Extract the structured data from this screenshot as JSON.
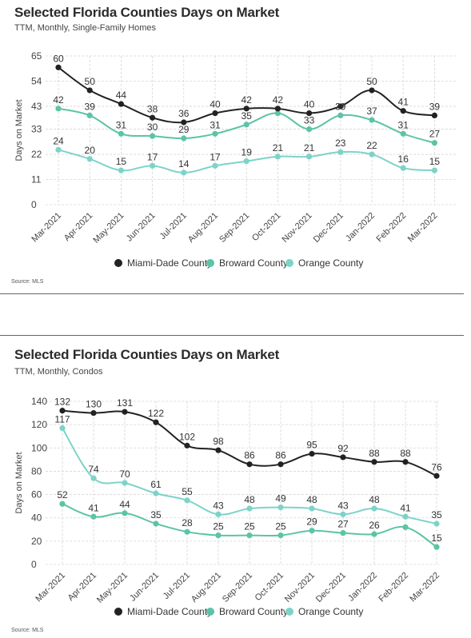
{
  "charts": [
    {
      "title": "Selected Florida Counties Days on Market",
      "subtitle": "TTM, Monthly, Single-Family Homes",
      "source": "Source: MLS"
    },
    {
      "title": "Selected Florida Counties Days on Market",
      "subtitle": "TTM, Monthly, Condos",
      "source": "Source: MLS"
    }
  ],
  "colors": {
    "miami": "#222222",
    "broward": "#5cc4a6",
    "orange": "#7dd3c8"
  },
  "chart_data": [
    {
      "type": "line",
      "title": "Selected Florida Counties Days on Market",
      "subtitle": "TTM, Monthly, Single-Family Homes",
      "ylabel": "Days on Market",
      "xlabel": "",
      "categories": [
        "Mar-2021",
        "Apr-2021",
        "May-2021",
        "Jun-2021",
        "Jul-2021",
        "Aug-2021",
        "Sep-2021",
        "Oct-2021",
        "Nov-2021",
        "Dec-2021",
        "Jan-2022",
        "Feb-2022",
        "Mar-2022"
      ],
      "yticks": [
        0,
        11,
        22,
        33,
        43,
        54,
        65
      ],
      "ylim": [
        0,
        65
      ],
      "grid": true,
      "legend": "bottom",
      "series": [
        {
          "name": "Miami-Dade County",
          "color": "#222222",
          "values": [
            60,
            50,
            44,
            38,
            36,
            40,
            42,
            42,
            40,
            43,
            50,
            41,
            39
          ],
          "labels": [
            "60",
            "50",
            "44",
            "38",
            "36",
            "40",
            "42",
            "42",
            "40",
            "",
            "50",
            "41",
            "39"
          ]
        },
        {
          "name": "Broward County",
          "color": "#5cc4a6",
          "values": [
            42,
            39,
            31,
            30,
            29,
            31,
            35,
            40,
            33,
            39,
            37,
            31,
            27
          ],
          "labels": [
            "42",
            "39",
            "31",
            "30",
            "29",
            "31",
            "35",
            "",
            "33",
            "39",
            "37",
            "31",
            "27"
          ]
        },
        {
          "name": "Orange County",
          "color": "#7dd3c8",
          "values": [
            24,
            20,
            15,
            17,
            14,
            17,
            19,
            21,
            21,
            23,
            22,
            16,
            15
          ],
          "labels": [
            "24",
            "20",
            "15",
            "17",
            "14",
            "17",
            "19",
            "21",
            "21",
            "23",
            "22",
            "16",
            "15"
          ]
        }
      ]
    },
    {
      "type": "line",
      "title": "Selected Florida Counties Days on Market",
      "subtitle": "TTM, Monthly, Condos",
      "ylabel": "Days on Market",
      "xlabel": "",
      "categories": [
        "Mar-2021",
        "Apr-2021",
        "May-2021",
        "Jun-2021",
        "Jul-2021",
        "Aug-2021",
        "Sep-2021",
        "Oct-2021",
        "Nov-2021",
        "Dec-2021",
        "Jan-2022",
        "Feb-2022",
        "Mar-2022"
      ],
      "yticks": [
        0,
        20,
        40,
        60,
        80,
        100,
        120,
        140
      ],
      "ylim": [
        0,
        140
      ],
      "grid": true,
      "legend": "bottom",
      "series": [
        {
          "name": "Miami-Dade County",
          "color": "#222222",
          "values": [
            132,
            130,
            131,
            122,
            102,
            98,
            86,
            86,
            95,
            92,
            88,
            88,
            76
          ],
          "labels": [
            "132",
            "130",
            "131",
            "122",
            "102",
            "98",
            "86",
            "86",
            "95",
            "92",
            "88",
            "88",
            "76"
          ]
        },
        {
          "name": "Broward County",
          "color": "#5cc4a6",
          "values": [
            52,
            41,
            44,
            35,
            28,
            25,
            25,
            25,
            29,
            27,
            26,
            32,
            15
          ],
          "labels": [
            "52",
            "41",
            "44",
            "35",
            "28",
            "25",
            "25",
            "25",
            "29",
            "27",
            "26",
            "",
            "15"
          ]
        },
        {
          "name": "Orange County",
          "color": "#7dd3c8",
          "values": [
            117,
            74,
            70,
            61,
            55,
            43,
            48,
            49,
            48,
            43,
            48,
            41,
            35
          ],
          "labels": [
            "117",
            "74",
            "70",
            "61",
            "55",
            "43",
            "48",
            "49",
            "48",
            "43",
            "48",
            "41",
            "35"
          ]
        }
      ]
    }
  ]
}
